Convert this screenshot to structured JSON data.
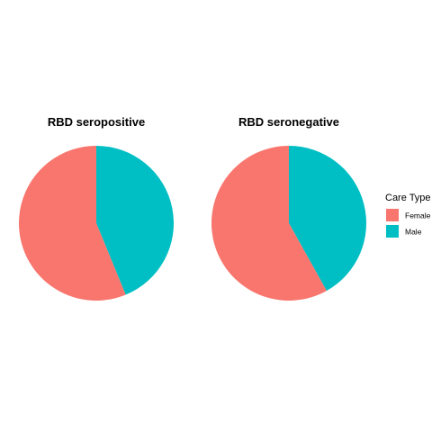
{
  "chart_data": {
    "type": "pie",
    "legend": {
      "title": "Care Type",
      "position": "right",
      "entries": [
        "Female",
        "Male"
      ]
    },
    "colors": {
      "Female": "#F8766D",
      "Male": "#00BFC4"
    },
    "panels": [
      {
        "title": "RBD seropositive",
        "slices": [
          {
            "label": "Female",
            "value": 0.562
          },
          {
            "label": "Male",
            "value": 0.438
          }
        ]
      },
      {
        "title": "RBD seronegative",
        "slices": [
          {
            "label": "Female",
            "value": 0.581
          },
          {
            "label": "Male",
            "value": 0.419
          }
        ]
      }
    ]
  }
}
